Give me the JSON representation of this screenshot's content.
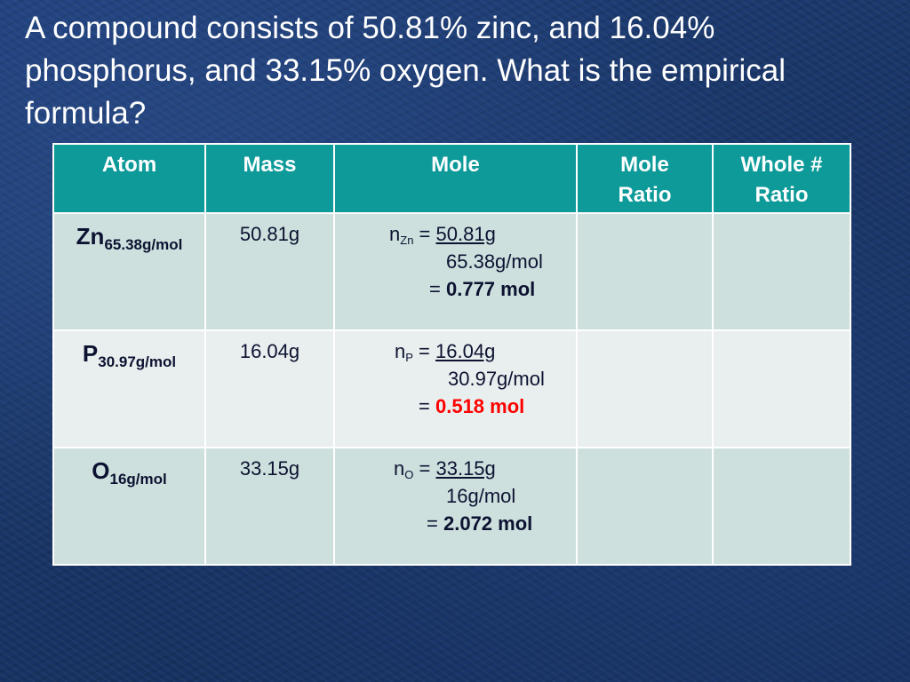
{
  "title": "A compound consists of 50.81% zinc, and 16.04% phosphorus, and 33.15% oxygen. What is the empirical formula?",
  "table": {
    "headers": {
      "atom": "Atom",
      "mass": "Mass",
      "mole": "Mole",
      "mole_ratio_1": "Mole",
      "mole_ratio_2": "Ratio",
      "whole_ratio_1": "Whole #",
      "whole_ratio_2": "Ratio"
    },
    "rows": [
      {
        "symbol": "Zn",
        "molar_mass": "65.38g/mol",
        "mass": "50.81g",
        "n_prefix": "n",
        "n_sub": "Zn",
        "eq": "=",
        "numerator": "50.81g",
        "denominator": "65.38g/mol",
        "result_eq": "=",
        "result": "0.777 mol"
      },
      {
        "symbol": "P",
        "molar_mass": "30.97g/mol",
        "mass": "16.04g",
        "n_prefix": "n",
        "n_sub": "P",
        "eq": "=",
        "numerator": "16.04g",
        "denominator": "30.97g/mol",
        "result_eq": "=",
        "result": "0.518 mol"
      },
      {
        "symbol": "O",
        "molar_mass": "16g/mol",
        "mass": "33.15g",
        "n_prefix": "n",
        "n_sub": "O",
        "eq": "=",
        "numerator": "33.15g",
        "denominator": "16g/mol",
        "result_eq": "=",
        "result": "2.072 mol"
      }
    ]
  },
  "colors": {
    "background": "#1a3668",
    "header_fill": "#0f9a9a",
    "row_fill": "#cde0de",
    "row_alt_fill": "#e8efee",
    "highlight_result": "#ff0000"
  }
}
